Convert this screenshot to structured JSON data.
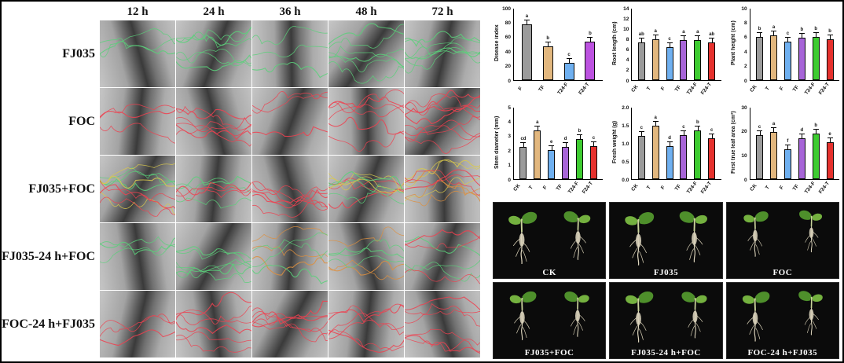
{
  "figure": {
    "caption": ""
  },
  "micro": {
    "col_headers": [
      "12 h",
      "24 h",
      "36 h",
      "48 h",
      "72 h"
    ],
    "rows": [
      {
        "label": "FJ035",
        "cells": [
          [
            "green"
          ],
          [
            "green",
            "green"
          ],
          [
            "green"
          ],
          [
            "green",
            "green"
          ],
          [
            "green",
            "green"
          ]
        ]
      },
      {
        "label": "FOC",
        "cells": [
          [
            "red"
          ],
          [
            "red",
            "red"
          ],
          [
            "red"
          ],
          [
            "red",
            "red"
          ],
          [
            "red",
            "red",
            "red"
          ]
        ]
      },
      {
        "label": "FJ035+FOC",
        "cells": [
          [
            "green",
            "yellow",
            "red"
          ],
          [
            "green",
            "red"
          ],
          [
            "red",
            "red"
          ],
          [
            "red",
            "yellow",
            "green"
          ],
          [
            "yellow",
            "orange",
            "red"
          ]
        ]
      },
      {
        "label": "FJ035-24 h+FOC",
        "cells": [
          [
            "green"
          ],
          [
            "green",
            "green"
          ],
          [
            "orange",
            "green"
          ],
          [
            "orange",
            "green"
          ],
          [
            "green",
            "red"
          ]
        ]
      },
      {
        "label": "FOC-24 h+FJ035",
        "cells": [
          [
            "red"
          ],
          [
            "red",
            "red"
          ],
          [
            "red",
            "red"
          ],
          [
            "red",
            "red"
          ],
          [
            "red",
            "red"
          ]
        ]
      }
    ]
  },
  "chart_data": [
    {
      "type": "bar",
      "title": "",
      "xlabel": "",
      "ylabel": "Disease index",
      "categories": [
        "F",
        "TF",
        "T24-F",
        "F24-T"
      ],
      "values": [
        81,
        49,
        25,
        56
      ],
      "sig_letters": [
        "a",
        "b",
        "c",
        "b"
      ],
      "bar_colors": [
        "#9B9B9B",
        "#E2B77E",
        "#6FB0F0",
        "#BC52E0"
      ],
      "ylim": [
        0,
        100
      ],
      "ytick_labels": [
        "0",
        "20",
        "40",
        "60",
        "80",
        "100"
      ],
      "grid": false,
      "legend": null
    },
    {
      "type": "bar",
      "title": "",
      "xlabel": "",
      "ylabel": "Root length (cm)",
      "categories": [
        "CK",
        "T",
        "F",
        "TF",
        "T24-F",
        "F24-T"
      ],
      "values": [
        7.7,
        8.3,
        6.7,
        8.1,
        8.2,
        7.6
      ],
      "sig_letters": [
        "ab",
        "a",
        "c",
        "a",
        "a",
        "ab"
      ],
      "bar_colors": [
        "#9B9B9B",
        "#E2B77E",
        "#6FB0F0",
        "#A765D8",
        "#3ECC31",
        "#E6312D"
      ],
      "ylim": [
        0,
        14
      ],
      "ytick_labels": [
        "0",
        "2",
        "4",
        "6",
        "8",
        "10",
        "12",
        "14"
      ],
      "grid": false,
      "legend": null
    },
    {
      "type": "bar",
      "title": "",
      "xlabel": "",
      "ylabel": "Plant height (cm)",
      "categories": [
        "CK",
        "T",
        "F",
        "TF",
        "T24-F",
        "F24-T"
      ],
      "values": [
        6.2,
        6.5,
        5.6,
        6.1,
        6.2,
        5.9
      ],
      "sig_letters": [
        "b",
        "a",
        "c",
        "b",
        "b",
        "b"
      ],
      "bar_colors": [
        "#9B9B9B",
        "#E2B77E",
        "#6FB0F0",
        "#A765D8",
        "#3ECC31",
        "#E6312D"
      ],
      "ylim": [
        0,
        10
      ],
      "ytick_labels": [
        "0",
        "2",
        "4",
        "6",
        "8",
        "10"
      ],
      "grid": false,
      "legend": null
    },
    {
      "type": "bar",
      "title": "",
      "xlabel": "",
      "ylabel": "Stem diameter (mm)",
      "categories": [
        "CK",
        "T",
        "F",
        "TF",
        "T24-F",
        "F24-T"
      ],
      "values": [
        2.35,
        3.5,
        2.1,
        2.35,
        2.9,
        2.4
      ],
      "sig_letters": [
        "cd",
        "a",
        "e",
        "d",
        "b",
        "c"
      ],
      "bar_colors": [
        "#9B9B9B",
        "#E2B77E",
        "#6FB0F0",
        "#A765D8",
        "#3ECC31",
        "#E6312D"
      ],
      "ylim": [
        0,
        5
      ],
      "ytick_labels": [
        "0",
        "1",
        "2",
        "3",
        "4",
        "5"
      ],
      "grid": false,
      "legend": null
    },
    {
      "type": "bar",
      "title": "",
      "xlabel": "",
      "ylabel": "Fresh weight (g)",
      "categories": [
        "CK",
        "T",
        "F",
        "TF",
        "T24-F",
        "F24-T"
      ],
      "values": [
        1.25,
        1.55,
        0.95,
        1.27,
        1.4,
        1.18
      ],
      "sig_letters": [
        "c",
        "a",
        "d",
        "c",
        "b",
        "c"
      ],
      "bar_colors": [
        "#9B9B9B",
        "#E2B77E",
        "#6FB0F0",
        "#A765D8",
        "#3ECC31",
        "#E6312D"
      ],
      "ylim": [
        0,
        2
      ],
      "ytick_labels": [
        "0.0",
        "0.5",
        "1.0",
        "1.5",
        "2.0"
      ],
      "grid": false,
      "legend": null
    },
    {
      "type": "bar",
      "title": "",
      "xlabel": "",
      "ylabel": "First true leaf area (cm²)",
      "categories": [
        "CK",
        "T",
        "F",
        "TF",
        "T24-F",
        "F24-T"
      ],
      "values": [
        19,
        20.5,
        13,
        17.8,
        19.8,
        16
      ],
      "sig_letters": [
        "c",
        "a",
        "f",
        "d",
        "b",
        "e"
      ],
      "bar_colors": [
        "#9B9B9B",
        "#E2B77E",
        "#6FB0F0",
        "#A765D8",
        "#3ECC31",
        "#E6312D"
      ],
      "ylim": [
        0,
        30
      ],
      "ytick_labels": [
        "0",
        "10",
        "20",
        "30"
      ],
      "grid": false,
      "legend": null
    }
  ],
  "photos": {
    "labels": [
      "CK",
      "FJ035",
      "FOC",
      "FJ035+FOC",
      "FJ035-24 h+FOC",
      "FOC-24 h+FJ035"
    ]
  },
  "colors": {
    "fluor_green": "#5AD07A",
    "fluor_red": "#EE4150",
    "fluor_yellow": "#D9C94C",
    "fluor_orange": "#DD8F3F",
    "bar_gray": "#9B9B9B",
    "bar_tan": "#E2B77E",
    "bar_blue": "#6FB0F0",
    "bar_purple": "#A765D8",
    "bar_green": "#3ECC31",
    "bar_red": "#E6312D",
    "bar_magenta": "#BC52E0"
  }
}
